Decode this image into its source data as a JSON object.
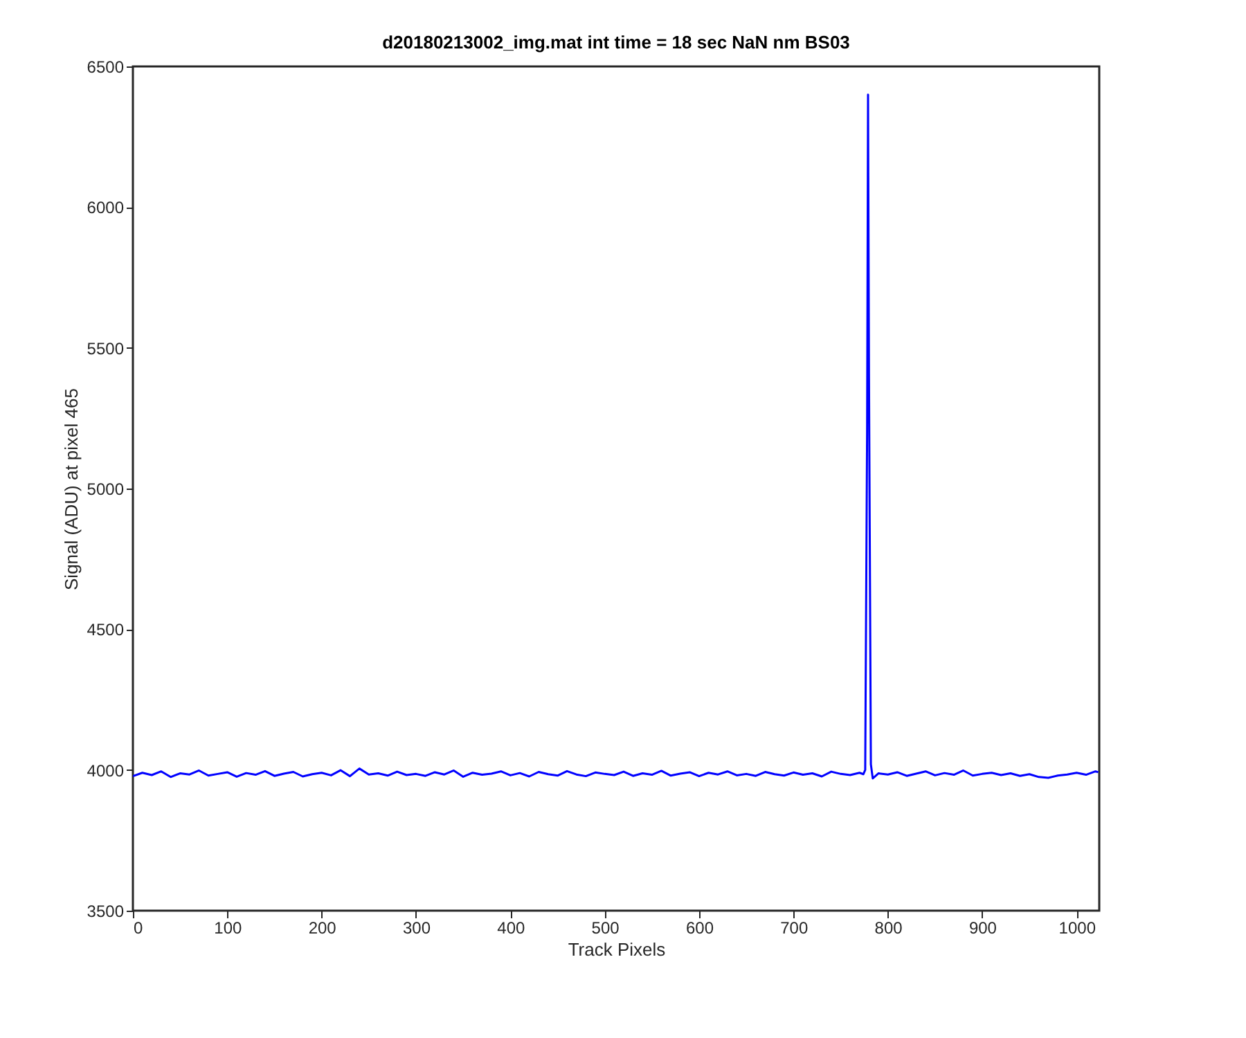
{
  "chart_data": {
    "type": "line",
    "title": "d20180213002_img.mat int time = 18 sec  NaN nm BS03",
    "xlabel": "Track Pixels",
    "ylabel": "Signal (ADU) at pixel 465",
    "x": [
      0,
      10,
      20,
      30,
      40,
      50,
      60,
      70,
      80,
      90,
      100,
      110,
      120,
      130,
      140,
      150,
      160,
      170,
      180,
      190,
      200,
      210,
      220,
      230,
      240,
      250,
      260,
      270,
      280,
      290,
      300,
      310,
      320,
      330,
      340,
      350,
      360,
      370,
      380,
      390,
      400,
      410,
      420,
      430,
      440,
      450,
      460,
      470,
      480,
      490,
      500,
      510,
      520,
      530,
      540,
      550,
      560,
      570,
      580,
      590,
      600,
      610,
      620,
      630,
      640,
      650,
      660,
      670,
      680,
      690,
      700,
      710,
      720,
      730,
      740,
      750,
      760,
      770,
      774,
      776,
      778,
      779,
      780,
      782,
      784,
      790,
      800,
      810,
      820,
      830,
      840,
      850,
      860,
      870,
      880,
      890,
      900,
      910,
      920,
      930,
      940,
      950,
      960,
      970,
      980,
      990,
      1000,
      1010,
      1020,
      1023
    ],
    "series": [
      {
        "color": "#0000ff",
        "values": [
          3978,
          3990,
          3982,
          3995,
          3975,
          3988,
          3984,
          3998,
          3980,
          3986,
          3992,
          3976,
          3989,
          3983,
          3996,
          3979,
          3987,
          3993,
          3977,
          3985,
          3990,
          3981,
          3999,
          3978,
          4005,
          3984,
          3988,
          3980,
          3994,
          3982,
          3986,
          3979,
          3992,
          3984,
          3998,
          3976,
          3990,
          3983,
          3987,
          3995,
          3981,
          3989,
          3977,
          3993,
          3985,
          3980,
          3996,
          3984,
          3978,
          3991,
          3986,
          3982,
          3994,
          3979,
          3988,
          3983,
          3997,
          3980,
          3987,
          3992,
          3978,
          3990,
          3984,
          3995,
          3981,
          3986,
          3979,
          3993,
          3985,
          3980,
          3991,
          3983,
          3988,
          3977,
          3994,
          3986,
          3982,
          3990,
          3985,
          4000,
          5200,
          6400,
          5400,
          4020,
          3970,
          3988,
          3984,
          3992,
          3979,
          3987,
          3995,
          3981,
          3989,
          3983,
          3998,
          3980,
          3986,
          3990,
          3982,
          3988,
          3979,
          3985,
          3975,
          3972,
          3980,
          3984,
          3990,
          3983,
          3995,
          3992
        ]
      }
    ],
    "xlim": [
      0,
      1024
    ],
    "xticks": [
      0,
      100,
      200,
      300,
      400,
      500,
      600,
      700,
      800,
      900,
      1000
    ],
    "ylim": [
      3500,
      6500
    ],
    "yticks": [
      3500,
      4000,
      4500,
      5000,
      5500,
      6000,
      6500
    ],
    "grid": false,
    "marker": "none",
    "line_style": "solid"
  }
}
